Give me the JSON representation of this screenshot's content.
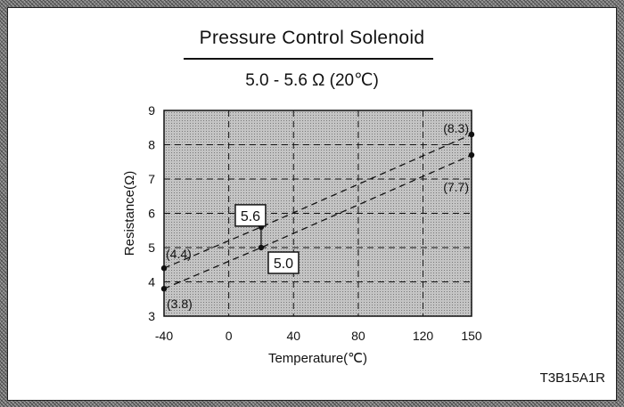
{
  "figure_code": "T3B15A1R",
  "chart_data": {
    "type": "line",
    "title": "Pressure Control Solenoid",
    "subtitle": "5.0 - 5.6 Ω (20℃)",
    "xlabel": "Temperature(℃)",
    "ylabel": "Resistance(Ω)",
    "xlim": [
      -40,
      150
    ],
    "ylim": [
      3,
      9
    ],
    "x_ticks": [
      -40,
      0,
      40,
      80,
      120,
      150
    ],
    "x_tick_labels": [
      "-40",
      "0",
      "40",
      "80",
      "120",
      "150"
    ],
    "y_ticks": [
      3,
      4,
      5,
      6,
      7,
      8,
      9
    ],
    "y_tick_labels": [
      "3",
      "4",
      "5",
      "6",
      "7",
      "8",
      "9"
    ],
    "grid": true,
    "series": [
      {
        "values": [
          {
            "x": -40,
            "y": 4.4
          },
          {
            "x": 20,
            "y": 5.6
          },
          {
            "x": 150,
            "y": 8.3
          }
        ]
      },
      {
        "values": [
          {
            "x": -40,
            "y": 3.8
          },
          {
            "x": 20,
            "y": 5.0
          },
          {
            "x": 150,
            "y": 7.7
          }
        ]
      }
    ],
    "annotations": [
      {
        "text": "(4.4)",
        "x": -40,
        "y": 4.4,
        "boxed": false
      },
      {
        "text": "(3.8)",
        "x": -40,
        "y": 3.8,
        "boxed": false
      },
      {
        "text": "(8.3)",
        "x": 150,
        "y": 8.3,
        "boxed": false
      },
      {
        "text": "(7.7)",
        "x": 150,
        "y": 7.7,
        "boxed": false
      },
      {
        "text": "5.6",
        "x": 20,
        "y": 5.6,
        "boxed": true
      },
      {
        "text": "5.0",
        "x": 20,
        "y": 5.0,
        "boxed": true
      }
    ]
  }
}
